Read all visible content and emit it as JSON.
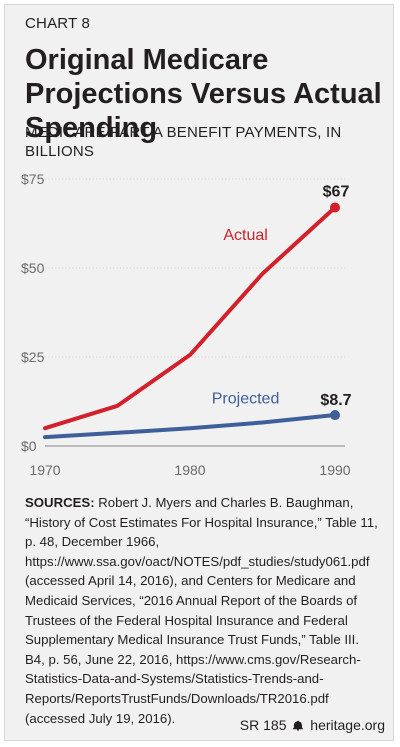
{
  "header": {
    "kicker": "CHART 8",
    "title": "Original Medicare Projections Versus Actual Spending",
    "subtitle": "MEDICARE PART A BENEFIT PAYMENTS, IN BILLIONS"
  },
  "chart_data": {
    "type": "line",
    "title": "Original Medicare Projections Versus Actual Spending",
    "subtitle": "MEDICARE PART A BENEFIT PAYMENTS, IN BILLIONS",
    "xlabel": "",
    "ylabel": "",
    "xlim": [
      1970,
      1990
    ],
    "ylim": [
      0,
      75
    ],
    "x_ticks": [
      1970,
      1980,
      1990
    ],
    "y_ticks": [
      0,
      25,
      50,
      75
    ],
    "y_tick_labels": [
      "$0",
      "$25",
      "$50",
      "$75"
    ],
    "grid": true,
    "series": [
      {
        "name": "Actual",
        "color": "#d2212b",
        "x": [
          1970,
          1975,
          1980,
          1985,
          1990
        ],
        "values": [
          5,
          11.3,
          25.6,
          48.4,
          67
        ],
        "end_label": "$67"
      },
      {
        "name": "Projected",
        "color": "#3f5f9a",
        "x": [
          1970,
          1975,
          1980,
          1985,
          1990
        ],
        "values": [
          2.5,
          3.7,
          5,
          6.6,
          8.7
        ],
        "end_label": "$8.7"
      }
    ]
  },
  "sources": {
    "label": "SOURCES:",
    "text": "Robert J. Myers and Charles B. Baughman, “History of Cost Estimates For Hospital Insurance,” Table 11, p. 48, December 1966, https://www.ssa.gov/oact/NOTES/pdf_studies/study061.pdf (accessed April 14, 2016), and Centers for Medicare and Medicaid Services, “2016 Annual Report of the Boards of Trustees of the Federal Hospital Insurance and Federal Supplementary Medical Insurance Trust Funds,” Table III. B4, p. 56, June 22, 2016, https://www.cms.gov/Research-Statistics-Data-and-Systems/Statistics-Trends-and-Reports/ReportsTrustFunds/Downloads/TR2016.pdf (accessed July 19, 2016)."
  },
  "footer": {
    "report_id": "SR 185",
    "site": "heritage.org",
    "bell_icon": "liberty-bell-icon"
  }
}
